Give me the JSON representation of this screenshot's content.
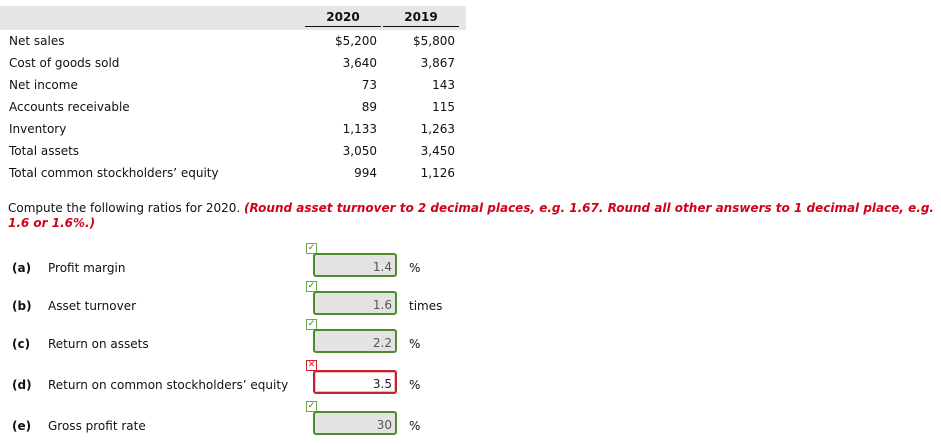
{
  "table": {
    "year_headers": [
      "2020",
      "2019"
    ],
    "rows": [
      {
        "label": "Net sales",
        "y2020": "$5,200",
        "y2019": "$5,800"
      },
      {
        "label": "Cost of goods sold",
        "y2020": "3,640",
        "y2019": "3,867"
      },
      {
        "label": "Net income",
        "y2020": "73",
        "y2019": "143"
      },
      {
        "label": "Accounts receivable",
        "y2020": "89",
        "y2019": "115"
      },
      {
        "label": "Inventory",
        "y2020": "1,133",
        "y2019": "1,263"
      },
      {
        "label": "Total assets",
        "y2020": "3,050",
        "y2019": "3,450"
      },
      {
        "label": "Total common stockholders’ equity",
        "y2020": "994",
        "y2019": "1,126"
      }
    ]
  },
  "instructions": {
    "text": "Compute the following ratios for 2020. ",
    "note": "(Round asset turnover to 2 decimal places, e.g. 1.67. Round all other answers to 1 decimal place, e.g. 1.6 or 1.6%.)"
  },
  "questions": [
    {
      "letter": "(a)",
      "label": "Profit margin",
      "value": "1.4",
      "unit": "%",
      "correct": true,
      "mark_symbol": "✓"
    },
    {
      "letter": "(b)",
      "label": "Asset turnover",
      "value": "1.6",
      "unit": "times",
      "correct": true,
      "mark_symbol": "✓"
    },
    {
      "letter": "(c)",
      "label": "Return on assets",
      "value": "2.2",
      "unit": "%",
      "correct": true,
      "mark_symbol": "✓"
    },
    {
      "letter": "(d)",
      "label": "Return on common stockholders’ equity",
      "value": "3.5",
      "unit": "%",
      "correct": false,
      "mark_symbol": "✕"
    },
    {
      "letter": "(e)",
      "label": "Gross profit rate",
      "value": "30",
      "unit": "%",
      "correct": true,
      "mark_symbol": "✓"
    }
  ],
  "colors": {
    "correct": "#4b8d2b",
    "incorrect": "#c6222e",
    "note": "#d0021b"
  }
}
